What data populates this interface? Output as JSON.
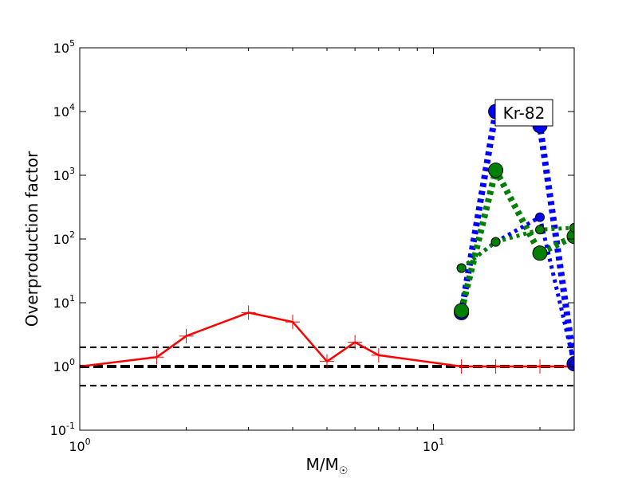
{
  "chart_data": {
    "type": "line",
    "title": "",
    "xlabel": "M/M",
    "xlabel_symbol": "☉",
    "ylabel": "Overproduction factor",
    "xscale": "log",
    "yscale": "log",
    "xlim": [
      1,
      25
    ],
    "ylim": [
      0.1,
      100000
    ],
    "x_ticks": [
      {
        "value": 1,
        "base": "10",
        "exp": "0"
      },
      {
        "value": 10,
        "base": "10",
        "exp": "1"
      }
    ],
    "y_ticks": [
      {
        "value": 0.1,
        "base": "10",
        "exp": "-1"
      },
      {
        "value": 1,
        "base": "10",
        "exp": "0"
      },
      {
        "value": 10,
        "base": "10",
        "exp": "1"
      },
      {
        "value": 100,
        "base": "10",
        "exp": "2"
      },
      {
        "value": 1000,
        "base": "10",
        "exp": "3"
      },
      {
        "value": 10000,
        "base": "10",
        "exp": "4"
      },
      {
        "value": 100000,
        "base": "10",
        "exp": "5"
      }
    ],
    "reference_lines": [
      {
        "y": 2,
        "style": "dashed",
        "color": "#000000"
      },
      {
        "y": 1,
        "style": "dashed-thick",
        "color": "#000000"
      },
      {
        "y": 0.5,
        "style": "dashed",
        "color": "#000000"
      }
    ],
    "annotation": {
      "text": "Kr-82",
      "x": 18,
      "y": 6000
    },
    "series": [
      {
        "color": "#ff0000",
        "line": "solid",
        "marker": "plus",
        "x": [
          1,
          1.65,
          2,
          3,
          4,
          5,
          6,
          7,
          12,
          15,
          20,
          25
        ],
        "y": [
          1.0,
          1.4,
          3.0,
          7.0,
          5.0,
          1.2,
          2.4,
          1.5,
          1.0,
          1.0,
          1.0,
          1.0
        ]
      },
      {
        "color": "#0000ff",
        "line": "dotted-thick",
        "marker": "circle-large",
        "x": [
          12,
          15,
          20,
          25
        ],
        "y": [
          7,
          10000,
          6000,
          1.1
        ]
      },
      {
        "color": "#008000",
        "line": "dotted-thick",
        "marker": "circle-large",
        "x": [
          12,
          15,
          20,
          25
        ],
        "y": [
          7.5,
          1200,
          60,
          110
        ]
      },
      {
        "color": "#0000ff",
        "line": "dotted",
        "marker": "circle-small",
        "x": [
          12,
          15,
          20,
          25
        ],
        "y": [
          35,
          90,
          220,
          1.1
        ]
      },
      {
        "color": "#008000",
        "line": "dotted",
        "marker": "circle-small",
        "x": [
          12,
          15,
          20,
          25
        ],
        "y": [
          35,
          90,
          140,
          150
        ]
      }
    ]
  }
}
